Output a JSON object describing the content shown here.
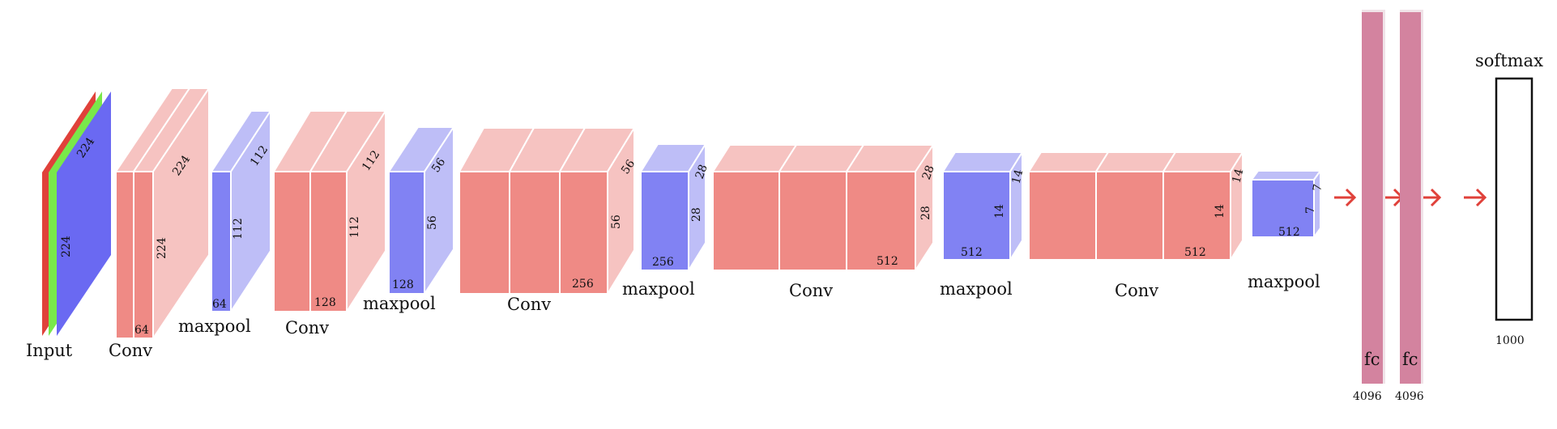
{
  "labels": {
    "input": "Input",
    "conv": "Conv",
    "maxpool": "maxpool",
    "fc": "fc",
    "softmax": "softmax"
  },
  "dims": {
    "input": [
      "224",
      "224"
    ],
    "conv1": [
      "224",
      "224",
      "64"
    ],
    "pool1": [
      "112",
      "112",
      "64"
    ],
    "conv2": [
      "112",
      "112",
      "128"
    ],
    "pool2": [
      "56",
      "56",
      "128"
    ],
    "conv3": [
      "56",
      "56",
      "256"
    ],
    "pool3": [
      "28",
      "28",
      "256"
    ],
    "conv4": [
      "28",
      "28",
      "512"
    ],
    "pool4": [
      "14",
      "14",
      "512"
    ],
    "conv5": [
      "14",
      "14",
      "512"
    ],
    "pool5": [
      "7",
      "7",
      "512"
    ],
    "fc1": "4096",
    "fc2": "4096",
    "softmax": "1000"
  },
  "colors": {
    "input_red": "#e0413a",
    "input_green": "#79e84a",
    "input_blue": "#6a69f2",
    "conv_front": "#ef8a85",
    "conv_light": "#f6c3c1",
    "pool_front": "#8182f3",
    "pool_light": "#bebef7",
    "fc_fill": "#d3839f",
    "arrow": "#e0413a"
  }
}
